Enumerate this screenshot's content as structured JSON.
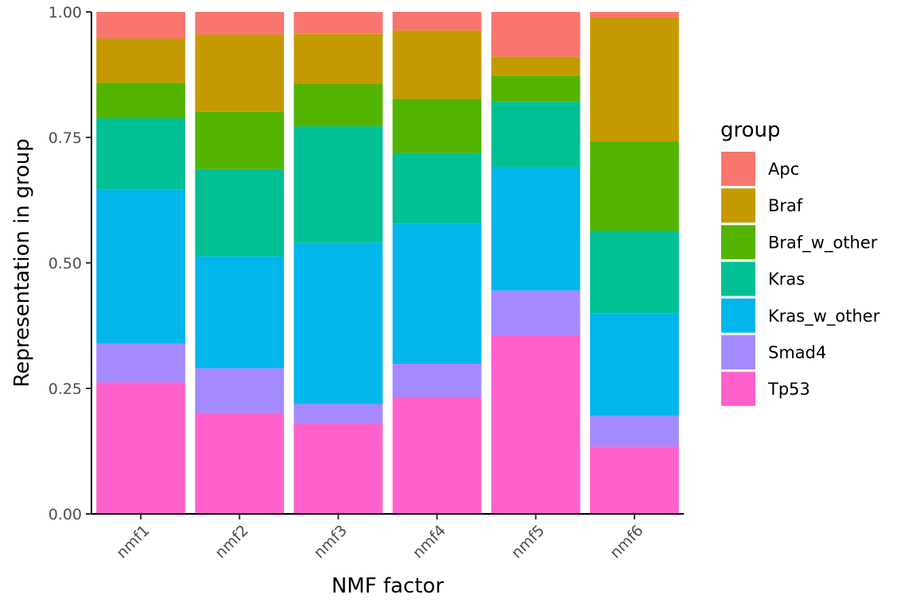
{
  "chart_data": {
    "type": "bar",
    "stacked": true,
    "categories": [
      "nmf1",
      "nmf2",
      "nmf3",
      "nmf4",
      "nmf5",
      "nmf6"
    ],
    "xlabel": "NMF factor",
    "ylabel": "Representation in group",
    "ylim": [
      0,
      1
    ],
    "yticks": [
      "0.00",
      "0.25",
      "0.50",
      "0.75",
      "1.00"
    ],
    "grid": false,
    "legend": {
      "title": "group",
      "position": "right"
    },
    "series": [
      {
        "name": "Tp53",
        "color": "#FF61CC",
        "values": [
          0.262,
          0.201,
          0.181,
          0.231,
          0.356,
          0.134
        ]
      },
      {
        "name": "Smad4",
        "color": "#A58AFF",
        "values": [
          0.077,
          0.089,
          0.038,
          0.068,
          0.089,
          0.061
        ]
      },
      {
        "name": "Kras_w_other",
        "color": "#00B6EB",
        "values": [
          0.308,
          0.223,
          0.321,
          0.279,
          0.245,
          0.205
        ]
      },
      {
        "name": "Kras",
        "color": "#00C094",
        "values": [
          0.141,
          0.174,
          0.232,
          0.141,
          0.131,
          0.164
        ]
      },
      {
        "name": "Braf_w_other",
        "color": "#53B400",
        "values": [
          0.071,
          0.114,
          0.084,
          0.108,
          0.052,
          0.178
        ]
      },
      {
        "name": "Braf",
        "color": "#C49A00",
        "values": [
          0.088,
          0.154,
          0.1,
          0.136,
          0.038,
          0.247
        ]
      },
      {
        "name": "Apc",
        "color": "#F8766D",
        "values": [
          0.053,
          0.045,
          0.044,
          0.037,
          0.089,
          0.011
        ]
      }
    ]
  }
}
